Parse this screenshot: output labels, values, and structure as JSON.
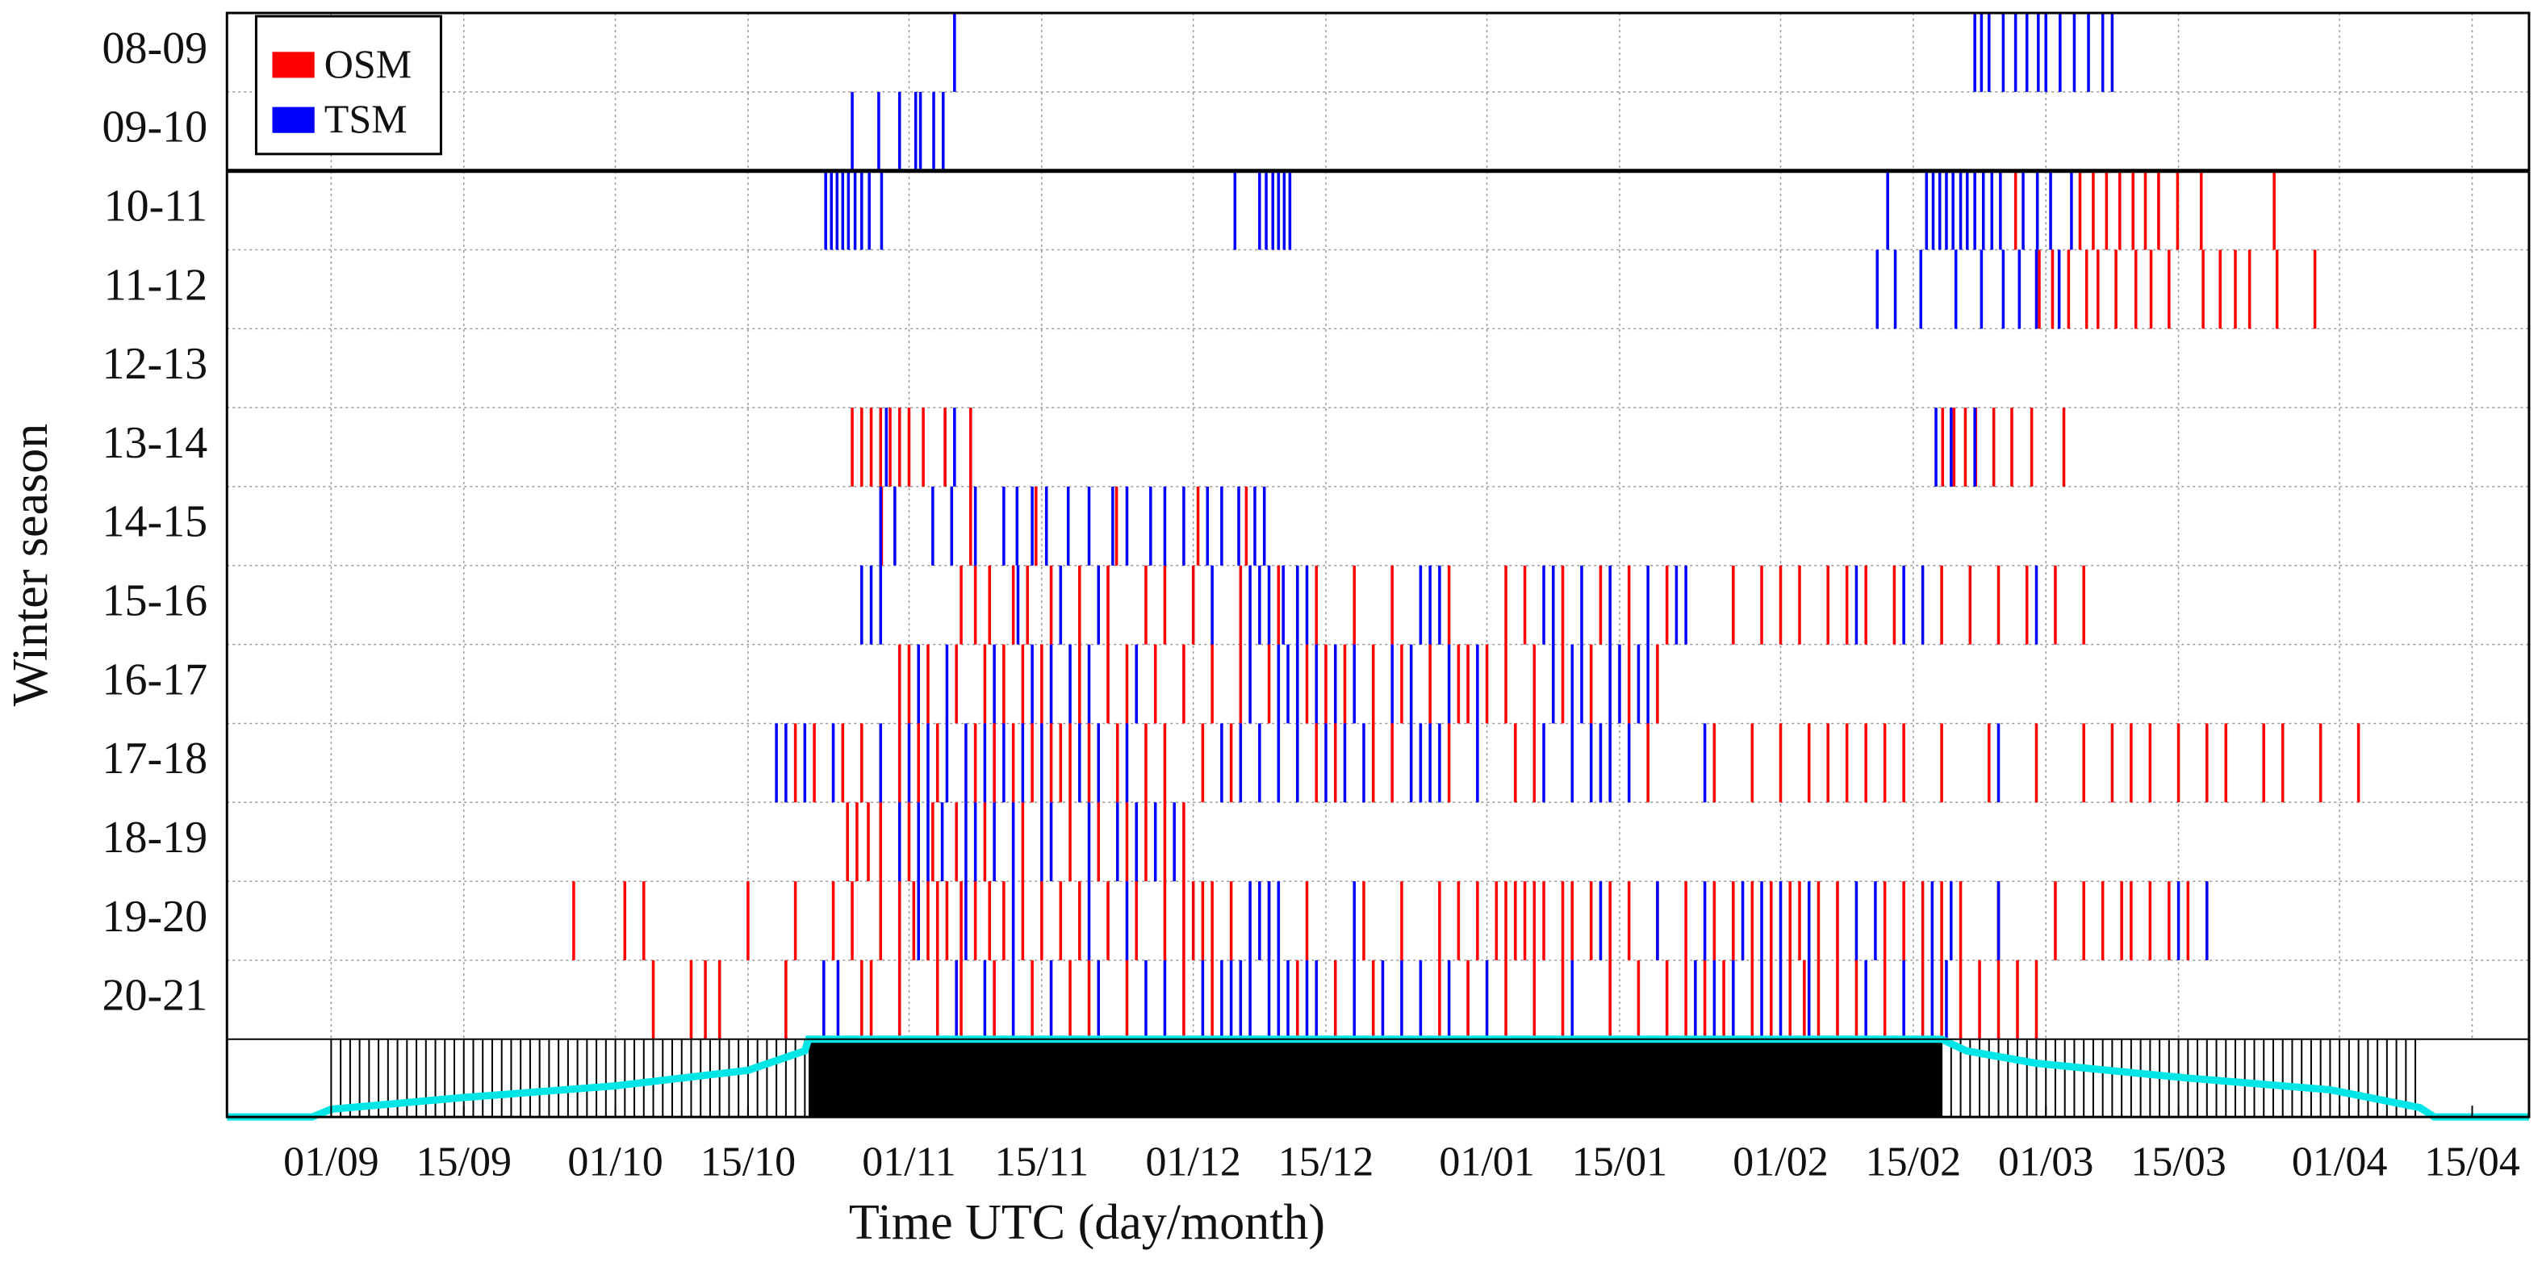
{
  "chart_data": {
    "type": "event",
    "x_label": "Time UTC (day/month)",
    "y_label": "Winter season",
    "categories": [
      "08-09",
      "09-10",
      "10-11",
      "11-12",
      "12-13",
      "13-14",
      "14-15",
      "15-16",
      "16-17",
      "17-18",
      "18-19",
      "19-20",
      "20-21"
    ],
    "series": [
      {
        "name": "OSM",
        "color": "#ff0000",
        "values": [
          [],
          [],
          [
            177.8,
            184.6,
            186,
            187.4,
            188.8,
            190.2,
            191.5,
            192.9,
            194.9,
            197.4,
            205.1
          ],
          [
            180.3,
            181.7,
            183.4,
            185.3,
            186.5,
            188.4,
            190.5,
            192.1,
            194,
            197.6,
            199.4,
            201,
            202.5,
            205.4,
            209.4
          ],
          [],
          [
            55,
            56,
            57,
            58,
            59,
            60,
            61,
            62.5,
            64.8,
            67.5,
            170.1,
            171.3,
            172.5,
            173.6,
            175.5,
            177.4,
            179.5,
            182.9
          ],
          [
            58.1,
            67.5,
            74.4,
            82.9,
            91.5,
            96.6
          ],
          [
            66.5,
            68,
            69.5,
            72,
            73.5,
            76,
            79,
            82,
            86,
            88,
            91,
            96,
            100,
            104,
            108,
            112,
            118,
            124,
            126,
            130,
            134,
            137,
            141,
            148,
            151,
            153,
            155,
            158,
            160,
            162,
            165,
            170,
            173,
            176,
            179,
            182,
            185
          ],
          [
            60,
            61,
            63,
            66,
            69,
            71,
            73,
            75,
            79,
            82,
            84,
            87,
            90,
            93,
            96,
            99,
            103,
            105,
            107,
            110,
            113,
            116,
            119,
            120,
            122,
            124,
            127,
            130,
            133,
            137,
            140
          ],
          [
            49,
            51,
            54,
            56,
            60,
            62,
            64,
            68,
            70,
            72,
            74,
            76,
            77,
            78,
            80,
            83,
            86,
            88,
            92,
            95,
            104,
            106,
            110,
            112,
            118,
            125,
            127,
            139,
            146,
            150,
            153,
            156,
            158,
            160,
            162,
            164,
            166,
            170,
            175,
            180,
            185,
            188,
            190,
            192,
            195,
            198,
            200,
            204,
            206,
            210,
            214
          ],
          [
            54.5,
            55.5,
            56.7,
            58,
            61,
            63.5,
            66,
            69,
            73,
            78,
            81,
            84,
            86,
            88,
            90
          ],
          [
            25.6,
            31,
            33,
            44,
            49,
            53,
            55,
            58,
            60,
            61.5,
            63,
            64,
            65,
            66.5,
            68,
            69.5,
            71,
            73,
            75,
            77,
            79,
            82,
            85,
            88,
            90,
            91,
            92,
            93,
            95,
            99,
            103,
            109,
            113,
            117,
            119,
            121,
            123,
            124,
            125,
            126,
            127,
            128,
            130,
            131,
            133,
            135,
            137,
            140,
            143,
            146,
            148,
            150,
            152,
            154,
            155,
            157,
            159,
            164,
            166,
            168,
            170,
            172,
            176,
            182,
            185,
            187,
            189,
            190,
            192,
            194,
            196,
            198
          ],
          [
            34,
            38,
            39.5,
            41,
            48,
            56,
            57,
            60,
            64,
            66.5,
            70,
            74,
            78,
            80,
            84,
            90,
            93,
            102,
            106,
            110,
            117,
            120,
            124,
            127,
            130,
            135,
            138,
            141,
            143,
            145,
            147,
            150,
            152,
            154,
            155.5,
            157,
            159,
            161,
            164,
            168,
            170,
            172,
            174,
            176,
            178,
            180
          ]
        ]
      },
      {
        "name": "TSM",
        "color": "#0000ff",
        "values": [
          [
            65.8,
            173.5,
            174.2,
            175,
            176.5,
            177.8,
            179,
            180.2,
            181,
            182.5,
            184,
            185.5,
            187,
            188
          ],
          [
            55,
            57.8,
            60,
            61.7,
            62.2,
            63.6,
            64.6
          ],
          [
            52.2,
            52.8,
            53.4,
            54,
            54.6,
            55.3,
            56,
            56.8,
            58.1,
            95.4,
            98,
            98.7,
            99.4,
            100,
            100.6,
            101.2,
            164.3,
            168.4,
            169.1,
            169.8,
            170.5,
            171.2,
            172,
            172.7,
            173.5,
            174.4,
            175.3,
            176.2,
            178.6,
            180.1,
            181.5,
            183.7
          ],
          [
            163.2,
            165.1,
            167.8,
            171.5,
            174.2,
            176.5,
            178.2,
            180,
            182.4
          ],
          [],
          [
            58.6,
            65.8,
            169.4,
            171,
            173.5
          ],
          [
            58,
            59.5,
            63.5,
            65.5,
            68,
            71,
            72.4,
            74,
            75.5,
            77.8,
            80,
            82.5,
            84,
            86.5,
            88,
            90,
            92.5,
            94,
            95.8,
            97.5,
            98.5
          ],
          [
            56,
            57,
            58,
            72.5,
            77,
            81,
            93,
            97,
            98,
            99,
            100.5,
            102,
            103,
            115,
            116,
            117,
            128,
            129,
            132,
            135,
            139,
            142,
            143,
            161,
            166,
            168,
            180
          ],
          [
            62,
            65,
            70,
            74,
            76,
            78,
            80,
            85,
            97,
            100,
            101,
            102,
            104,
            106,
            108,
            112,
            114,
            118,
            121,
            129,
            131,
            132,
            135,
            136,
            138,
            139
          ],
          [
            47,
            48,
            50,
            53,
            58,
            61,
            63,
            65,
            67,
            69,
            71,
            73,
            75,
            79,
            81,
            84,
            94,
            96,
            98,
            100,
            102,
            105,
            107,
            109,
            114,
            115,
            116,
            117,
            121,
            128,
            131,
            133,
            134,
            135,
            137,
            145,
            176
          ],
          [
            60,
            62,
            63,
            64.5,
            67,
            68,
            70,
            72,
            75,
            76,
            80,
            83,
            85,
            87,
            89
          ],
          [
            62,
            67,
            72,
            80,
            84,
            97,
            98,
            99,
            100,
            108,
            134,
            140,
            145,
            149,
            151,
            153,
            156,
            161,
            163,
            169,
            171,
            176,
            195,
            198
          ],
          [
            52,
            53.5,
            66,
            69,
            72,
            76,
            81,
            86,
            88,
            92,
            94,
            95,
            96,
            97,
            99,
            100,
            101,
            103,
            104,
            108,
            111,
            113,
            115,
            118,
            122,
            131,
            144,
            146,
            148,
            151,
            153,
            156,
            162,
            166,
            169,
            170.5
          ]
        ]
      }
    ],
    "xlim": [
      -11,
      232
    ],
    "xticks": [
      {
        "value": 0,
        "label": "01/09"
      },
      {
        "value": 14,
        "label": "15/09"
      },
      {
        "value": 30,
        "label": "01/10"
      },
      {
        "value": 44,
        "label": "15/10"
      },
      {
        "value": 61,
        "label": "01/11"
      },
      {
        "value": 75,
        "label": "15/11"
      },
      {
        "value": 91,
        "label": "01/12"
      },
      {
        "value": 105,
        "label": "15/12"
      },
      {
        "value": 122,
        "label": "01/01"
      },
      {
        "value": 136,
        "label": "15/01"
      },
      {
        "value": 153,
        "label": "01/02"
      },
      {
        "value": 167,
        "label": "15/02"
      },
      {
        "value": 181,
        "label": "01/03"
      },
      {
        "value": 195,
        "label": "15/03"
      },
      {
        "value": 212,
        "label": "01/04"
      },
      {
        "value": 226,
        "label": "15/04"
      }
    ],
    "grid": true,
    "legend": "upper left",
    "curve": {
      "color": "#00e5e5",
      "ylim": [
        0,
        1
      ],
      "x": [
        -11,
        -2,
        0,
        14,
        30,
        44,
        50,
        50.4,
        170,
        172.6,
        180,
        196,
        211,
        220.5,
        222,
        232
      ],
      "values": [
        0,
        0,
        0.1,
        0.25,
        0.4,
        0.6,
        0.85,
        1,
        1,
        0.85,
        0.69,
        0.5,
        0.35,
        0.12,
        0,
        0
      ]
    }
  }
}
